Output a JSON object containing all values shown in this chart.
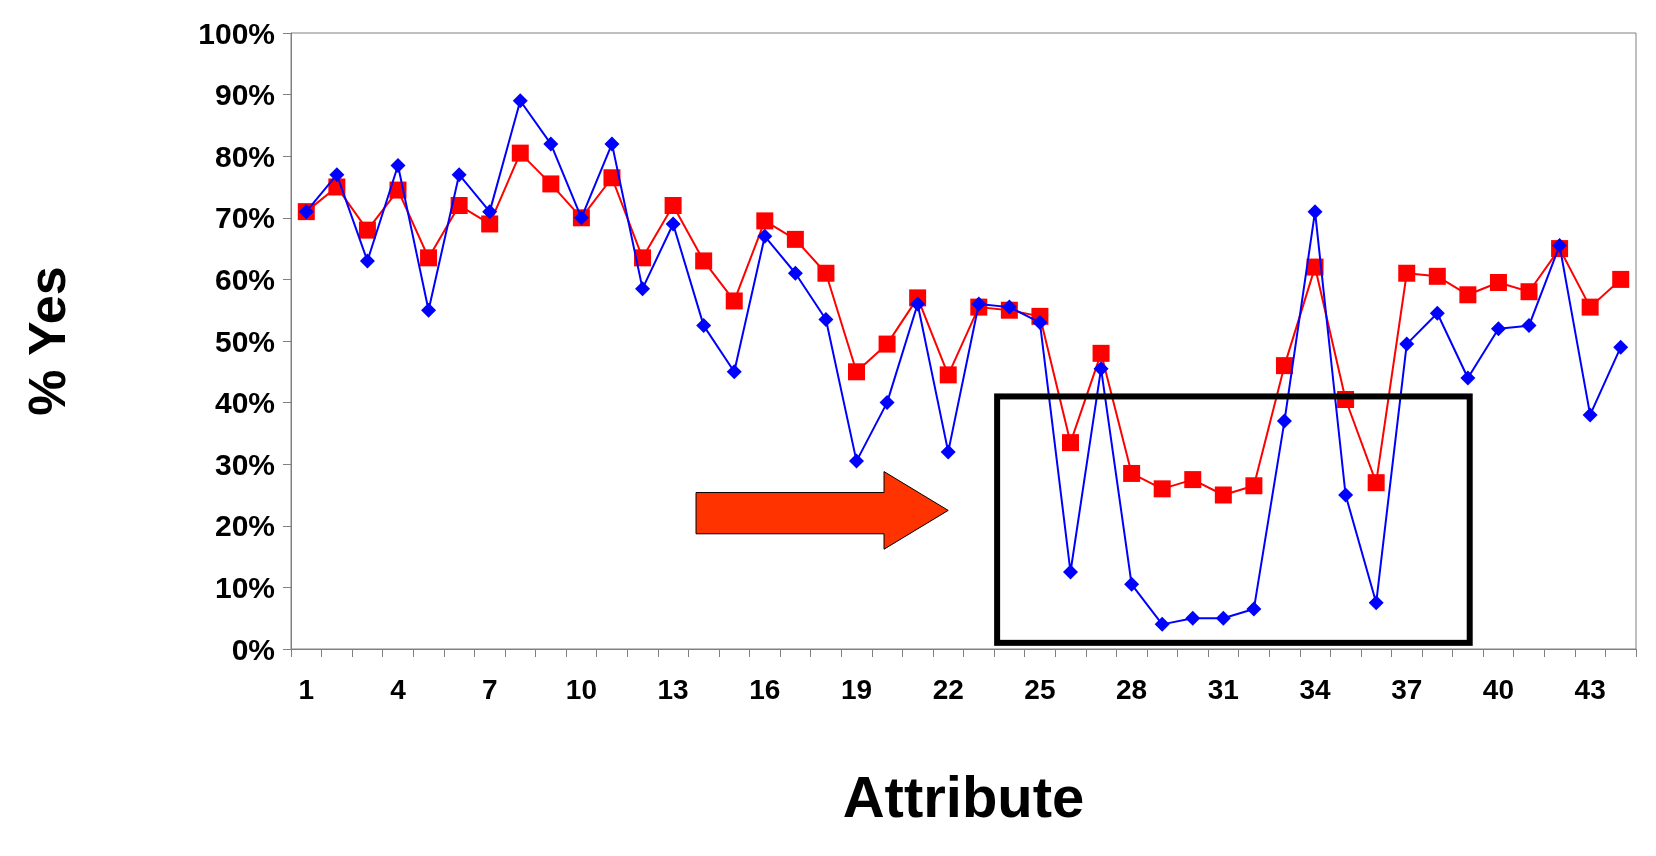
{
  "chart_data": {
    "type": "line",
    "xlabel": "Attribute",
    "ylabel": "% Yes",
    "categories": [
      "1",
      null,
      null,
      "4",
      null,
      null,
      "7",
      null,
      null,
      "10",
      null,
      null,
      "13",
      null,
      null,
      "16",
      null,
      null,
      "19",
      null,
      null,
      "22",
      null,
      null,
      "25",
      null,
      null,
      "28",
      null,
      null,
      "31",
      null,
      null,
      "34",
      null,
      null,
      "37",
      null,
      null,
      "40",
      null,
      null,
      "43",
      null
    ],
    "series": [
      {
        "color": "#0000ff",
        "marker": "diamond",
        "values": [
          71,
          77,
          63,
          78.5,
          55,
          77,
          71,
          89,
          82,
          70,
          82,
          58.5,
          69,
          52.5,
          45,
          67,
          61,
          53.5,
          30.5,
          40,
          56,
          32,
          56,
          55.5,
          53,
          12.5,
          45.5,
          10.5,
          4,
          5,
          5,
          6.5,
          37,
          71,
          25,
          7.5,
          49.5,
          54.5,
          44,
          52,
          52.5,
          65.5,
          38,
          49
        ]
      },
      {
        "color": "#ff0000",
        "marker": "square",
        "values": [
          71,
          75,
          68,
          74.5,
          63.5,
          72,
          69,
          80.5,
          75.5,
          70,
          76.5,
          63.5,
          72,
          63,
          56.5,
          69.5,
          66.5,
          61,
          45,
          49.5,
          57,
          44.5,
          55.5,
          55,
          54,
          33.5,
          48,
          28.5,
          26,
          27.5,
          25,
          26.5,
          46,
          62,
          40.5,
          27,
          61,
          60.5,
          57.5,
          59.5,
          58,
          65,
          55.5,
          60
        ]
      }
    ],
    "ylim": [
      0,
      100
    ],
    "yticks": [
      {
        "value": 0,
        "label": "0%"
      },
      {
        "value": 10,
        "label": "10%"
      },
      {
        "value": 20,
        "label": "20%"
      },
      {
        "value": 30,
        "label": "30%"
      },
      {
        "value": 40,
        "label": "40%"
      },
      {
        "value": 50,
        "label": "50%"
      },
      {
        "value": 60,
        "label": "60%"
      },
      {
        "value": 70,
        "label": "70%"
      },
      {
        "value": 80,
        "label": "80%"
      },
      {
        "value": 90,
        "label": "90%"
      },
      {
        "value": 100,
        "label": "100%"
      }
    ],
    "grid": false,
    "line_style": "solid"
  }
}
